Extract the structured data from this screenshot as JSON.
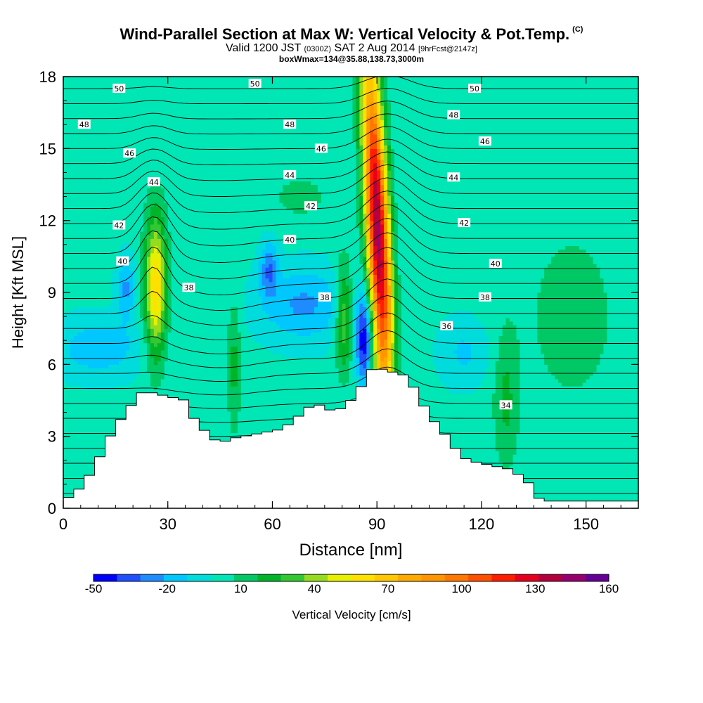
{
  "title": {
    "main": "Wind-Parallel Section at Max W: Vertical Velocity & Pot.Temp.",
    "copyright": "(C)",
    "valid_prefix": "Valid 1200 JST",
    "valid_utc": "(0300Z)",
    "valid_date": "SAT 2 Aug 2014",
    "forecast": "[9hrFcst@2147z]",
    "box": "boxWmax=134@35.88,138.73,3000m"
  },
  "chart_data": {
    "type": "heatmap",
    "xlabel": "Distance [nm]",
    "ylabel": "Height [Kft MSL]",
    "xlim": [
      0,
      165
    ],
    "ylim": [
      0,
      18
    ],
    "x_ticks": [
      "0",
      "30",
      "60",
      "90",
      "120",
      "150"
    ],
    "y_ticks": [
      "0",
      "3",
      "6",
      "9",
      "12",
      "15",
      "18"
    ],
    "colorbar": {
      "label": "Vertical Velocity [cm/s]",
      "tick_labels": [
        "-50",
        "-20",
        "10",
        "40",
        "70",
        "100",
        "130",
        "160"
      ],
      "levels": [
        -50,
        -40,
        -30,
        -20,
        -10,
        0,
        10,
        20,
        30,
        40,
        50,
        60,
        70,
        80,
        90,
        100,
        110,
        120,
        130,
        140,
        150,
        160
      ],
      "colors": [
        "#0000ff",
        "#1f4fff",
        "#1e8cff",
        "#00c8ff",
        "#00dcdc",
        "#00e6b4",
        "#00c864",
        "#00b428",
        "#32c832",
        "#96dc1e",
        "#e6f000",
        "#ffe100",
        "#ffc800",
        "#ffaa00",
        "#ff9600",
        "#ff7800",
        "#ff5000",
        "#ff1e00",
        "#e6001e",
        "#b4003c",
        "#96006e",
        "#640096"
      ]
    },
    "theta_labels": [
      {
        "x": 16,
        "y": 17.5,
        "text": "50"
      },
      {
        "x": 55,
        "y": 17.7,
        "text": "50"
      },
      {
        "x": 118,
        "y": 17.5,
        "text": "50"
      },
      {
        "x": 6,
        "y": 16.0,
        "text": "48"
      },
      {
        "x": 65,
        "y": 16.0,
        "text": "48"
      },
      {
        "x": 112,
        "y": 16.4,
        "text": "48"
      },
      {
        "x": 19,
        "y": 14.8,
        "text": "46"
      },
      {
        "x": 74,
        "y": 15.0,
        "text": "46"
      },
      {
        "x": 121,
        "y": 15.3,
        "text": "46"
      },
      {
        "x": 26,
        "y": 13.6,
        "text": "44"
      },
      {
        "x": 65,
        "y": 13.9,
        "text": "44"
      },
      {
        "x": 112,
        "y": 13.8,
        "text": "44"
      },
      {
        "x": 71,
        "y": 12.6,
        "text": "42"
      },
      {
        "x": 16,
        "y": 11.8,
        "text": "42"
      },
      {
        "x": 115,
        "y": 11.9,
        "text": "42"
      },
      {
        "x": 65,
        "y": 11.2,
        "text": "40"
      },
      {
        "x": 17,
        "y": 10.3,
        "text": "40"
      },
      {
        "x": 124,
        "y": 10.2,
        "text": "40"
      },
      {
        "x": 36,
        "y": 9.2,
        "text": "38"
      },
      {
        "x": 75,
        "y": 8.8,
        "text": "38"
      },
      {
        "x": 121,
        "y": 8.8,
        "text": "38"
      },
      {
        "x": 110,
        "y": 7.6,
        "text": "36"
      },
      {
        "x": 127,
        "y": 4.3,
        "text": "34"
      }
    ],
    "terrain_height_kft": [
      [
        0,
        0.3
      ],
      [
        3,
        0.6
      ],
      [
        6,
        1.0
      ],
      [
        10,
        2.0
      ],
      [
        13,
        2.9
      ],
      [
        16,
        3.6
      ],
      [
        19,
        4.2
      ],
      [
        23,
        4.9
      ],
      [
        35,
        4.5
      ],
      [
        36,
        4.0
      ],
      [
        39,
        3.5
      ],
      [
        42,
        3.0
      ],
      [
        45,
        2.7
      ],
      [
        48,
        2.9
      ],
      [
        63,
        3.3
      ],
      [
        68,
        3.9
      ],
      [
        72,
        4.4
      ],
      [
        78,
        4.0
      ],
      [
        81,
        4.3
      ],
      [
        84,
        4.7
      ],
      [
        86,
        5.2
      ],
      [
        89,
        5.9
      ],
      [
        99,
        5.5
      ],
      [
        102,
        4.6
      ],
      [
        106,
        3.7
      ],
      [
        110,
        3.0
      ],
      [
        113,
        2.4
      ],
      [
        116,
        2.0
      ],
      [
        129,
        1.6
      ],
      [
        134,
        1.0
      ],
      [
        137,
        0.3
      ],
      [
        165,
        0.3
      ]
    ]
  }
}
